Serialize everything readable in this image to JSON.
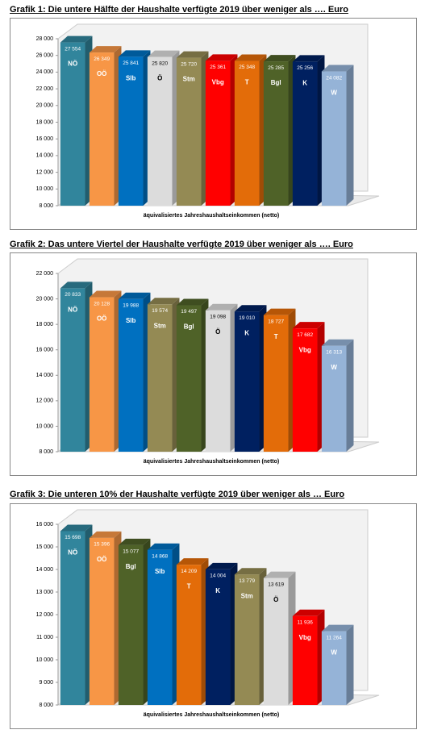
{
  "chart_data": [
    {
      "type": "bar3d",
      "title": "Grafik 1: Die untere Hälfte der Haushalte verfügte 2019 über weniger als …. Euro",
      "x_label": "äquivalisiertes Jahreshaushaltseinkommen (netto)",
      "categories": [
        "NÖ",
        "OÖ",
        "Slb",
        "Ö",
        "Stm",
        "Vbg",
        "T",
        "Bgl",
        "K",
        "W"
      ],
      "values": [
        27554,
        26349,
        25841,
        25820,
        25720,
        25361,
        25348,
        25285,
        25256,
        24082
      ],
      "value_labels": [
        "27 554",
        "26 349",
        "25 841",
        "25 820",
        "25 720",
        "25 361",
        "25 348",
        "25 285",
        "25 256",
        "24 082"
      ],
      "colors": [
        "#31859c",
        "#f79646",
        "#0070c0",
        "#dcdcdc",
        "#948a54",
        "#ff0000",
        "#e36c09",
        "#4f6228",
        "#002060",
        "#95b3d7"
      ],
      "ylim": [
        8000,
        28000
      ],
      "yticks": [
        {
          "value": 8000,
          "label": "8 000"
        },
        {
          "value": 10000,
          "label": "10 000"
        },
        {
          "value": 12000,
          "label": "12 000"
        },
        {
          "value": 14000,
          "label": "14 000"
        },
        {
          "value": 16000,
          "label": "16 000"
        },
        {
          "value": 18000,
          "label": "18 000"
        },
        {
          "value": 20000,
          "label": "20 000"
        },
        {
          "value": 22000,
          "label": "22 000"
        },
        {
          "value": 24000,
          "label": "24 000"
        },
        {
          "value": 26000,
          "label": "26 000"
        },
        {
          "value": 28000,
          "label": "28 000"
        }
      ]
    },
    {
      "type": "bar3d",
      "title": "Grafik 2: Das untere Viertel der Haushalte verfügte 2019 über weniger als …. Euro",
      "x_label": "äquivalisiertes Jahreshaushaltseinkommen (netto)",
      "categories": [
        "NÖ",
        "OÖ",
        "Slb",
        "Stm",
        "Bgl",
        "Ö",
        "K",
        "T",
        "Vbg",
        "W"
      ],
      "values": [
        20833,
        20128,
        19988,
        19574,
        19497,
        19098,
        19010,
        18727,
        17682,
        16313
      ],
      "value_labels": [
        "20 833",
        "20 128",
        "19 988",
        "19 574",
        "19 497",
        "19 098",
        "19 010",
        "18 727",
        "17 682",
        "16 313"
      ],
      "colors": [
        "#31859c",
        "#f79646",
        "#0070c0",
        "#948a54",
        "#4f6228",
        "#dcdcdc",
        "#002060",
        "#e36c09",
        "#ff0000",
        "#95b3d7"
      ],
      "ylim": [
        8000,
        22000
      ],
      "yticks": [
        {
          "value": 8000,
          "label": "8 000"
        },
        {
          "value": 10000,
          "label": "10 000"
        },
        {
          "value": 12000,
          "label": "12 000"
        },
        {
          "value": 14000,
          "label": "14 000"
        },
        {
          "value": 16000,
          "label": "16 000"
        },
        {
          "value": 18000,
          "label": "18 000"
        },
        {
          "value": 20000,
          "label": "20 000"
        },
        {
          "value": 22000,
          "label": "22 000"
        }
      ]
    },
    {
      "type": "bar3d",
      "title": "Grafik 3: Die unteren 10% der Haushalte verfügte 2019 über weniger als … Euro",
      "x_label": "äquivalisiertes Jahreshaushaltseinkommen (netto)",
      "categories": [
        "NÖ",
        "OÖ",
        "Bgl",
        "Slb",
        "T",
        "K",
        "Stm",
        "Ö",
        "Vbg",
        "W"
      ],
      "values": [
        15698,
        15396,
        15077,
        14868,
        14209,
        14004,
        13779,
        13619,
        11936,
        11264
      ],
      "value_labels": [
        "15 698",
        "15 396",
        "15 077",
        "14 868",
        "14 209",
        "14 004",
        "13 779",
        "13 619",
        "11 936",
        "11 264"
      ],
      "colors": [
        "#31859c",
        "#f79646",
        "#4f6228",
        "#0070c0",
        "#e36c09",
        "#002060",
        "#948a54",
        "#dcdcdc",
        "#ff0000",
        "#95b3d7"
      ],
      "ylim": [
        8000,
        16000
      ],
      "yticks": [
        {
          "value": 8000,
          "label": "8 000"
        },
        {
          "value": 9000,
          "label": "9 000"
        },
        {
          "value": 10000,
          "label": "10 000"
        },
        {
          "value": 11000,
          "label": "11 000"
        },
        {
          "value": 12000,
          "label": "12 000"
        },
        {
          "value": 13000,
          "label": "13 000"
        },
        {
          "value": 14000,
          "label": "14 000"
        },
        {
          "value": 15000,
          "label": "15 000"
        },
        {
          "value": 16000,
          "label": "16 000"
        }
      ]
    }
  ]
}
